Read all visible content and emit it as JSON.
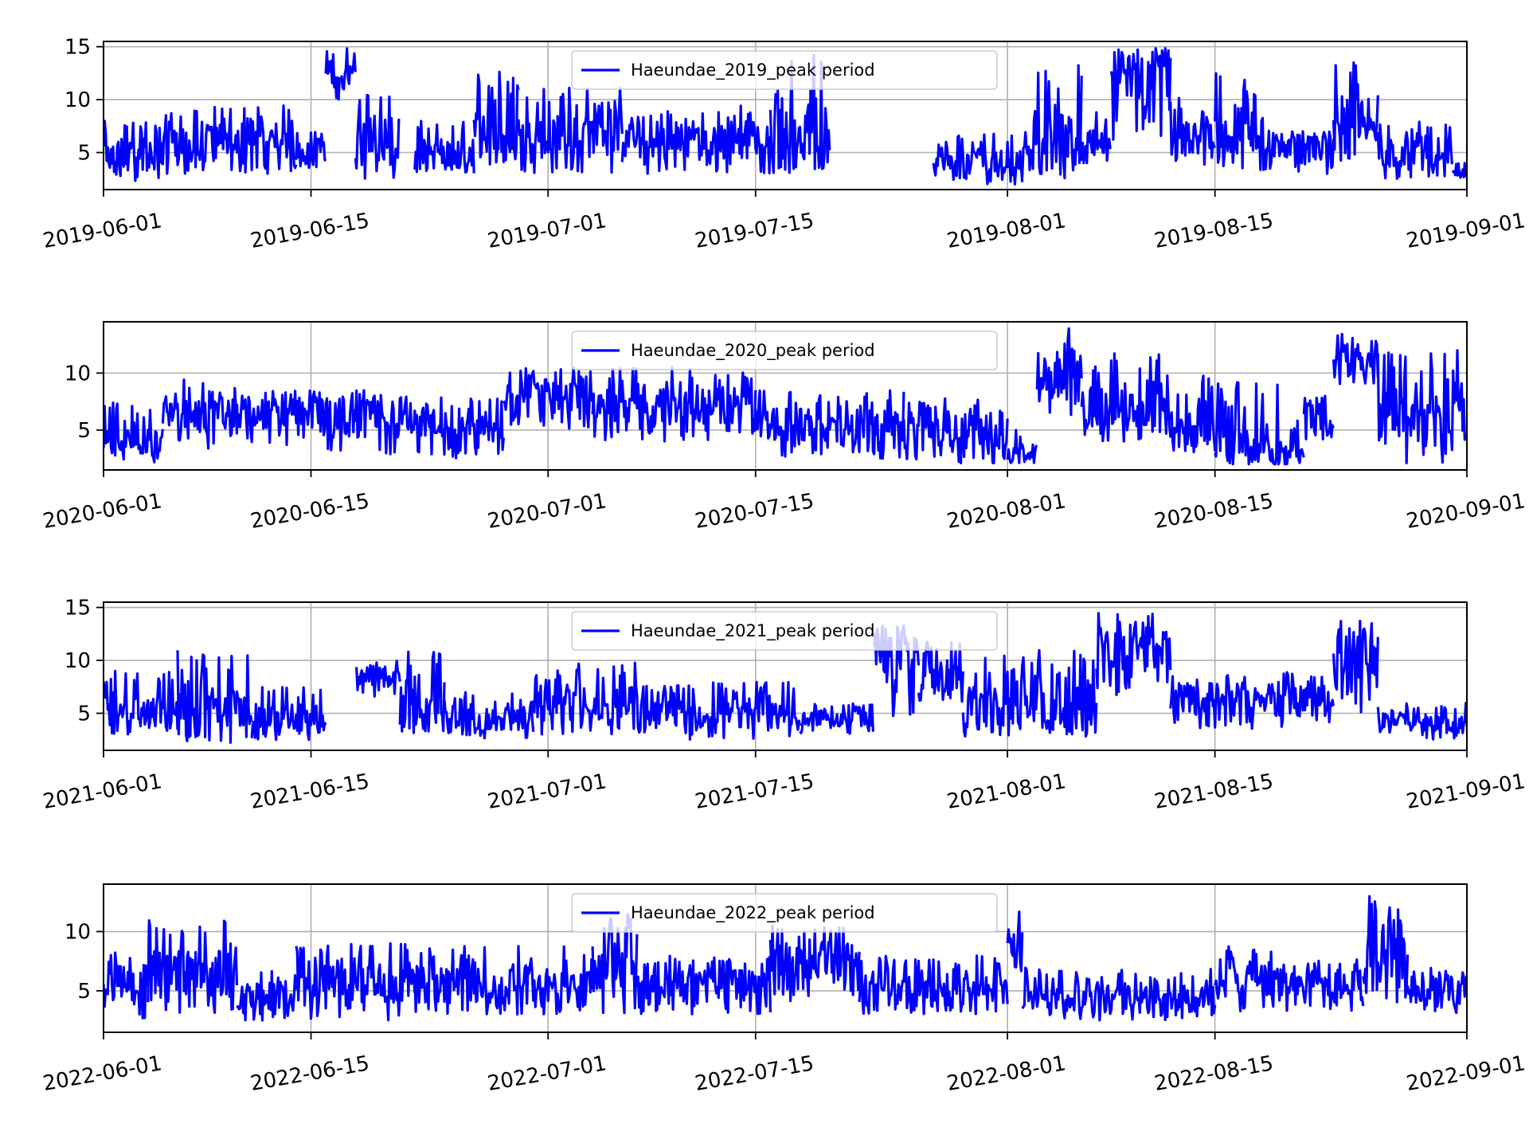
{
  "chart_data": [
    {
      "type": "line",
      "series": [
        {
          "name": "Haeundae_2019_peak period",
          "color": "#0000ff"
        }
      ],
      "x_ticks": [
        "2019-06-01",
        "2019-06-15",
        "2019-07-01",
        "2019-07-15",
        "2019-08-01",
        "2019-08-15",
        "2019-09-01"
      ],
      "y_ticks": [
        "5",
        "10",
        "15"
      ],
      "xlim": [
        "2019-06-01",
        "2019-09-01"
      ],
      "ylim": [
        1.5,
        15.5
      ],
      "grid": true,
      "legend_position": "top-center",
      "segments": [
        {
          "from": "2019-06-01",
          "to": "2019-06-05",
          "min": 2,
          "max": 8,
          "mid": 4.5
        },
        {
          "from": "2019-06-05",
          "to": "2019-06-08",
          "min": 3,
          "max": 9,
          "mid": 5.5
        },
        {
          "from": "2019-06-08",
          "to": "2019-06-14",
          "min": 3,
          "max": 9.5,
          "mid": 6
        },
        {
          "from": "2019-06-14",
          "to": "2019-06-16",
          "min": 3.5,
          "max": 7,
          "mid": 5
        },
        {
          "from": "2019-06-16",
          "to": "2019-06-18",
          "min": 10,
          "max": 15,
          "mid": 12.5
        },
        {
          "from": "2019-06-18",
          "to": "2019-06-21",
          "min": 2,
          "max": 11,
          "mid": 6
        },
        {
          "from": "2019-06-22",
          "to": "2019-06-26",
          "min": 3,
          "max": 8,
          "mid": 4.5
        },
        {
          "from": "2019-06-26",
          "to": "2019-06-29",
          "min": 3,
          "max": 13,
          "mid": 7
        },
        {
          "from": "2019-06-29",
          "to": "2019-07-06",
          "min": 3,
          "max": 11.5,
          "mid": 6.5
        },
        {
          "from": "2019-07-06",
          "to": "2019-07-12",
          "min": 3,
          "max": 9,
          "mid": 6
        },
        {
          "from": "2019-07-12",
          "to": "2019-07-16",
          "min": 3,
          "max": 9.5,
          "mid": 6.5
        },
        {
          "from": "2019-07-16",
          "to": "2019-07-20",
          "min": 3,
          "max": 14.5,
          "mid": 6
        },
        {
          "from": "2019-07-27",
          "to": "2019-08-02",
          "min": 2,
          "max": 7,
          "mid": 4
        },
        {
          "from": "2019-08-02",
          "to": "2019-08-06",
          "min": 2.5,
          "max": 13.5,
          "mid": 6
        },
        {
          "from": "2019-08-06",
          "to": "2019-08-08",
          "min": 4,
          "max": 9,
          "mid": 6
        },
        {
          "from": "2019-08-08",
          "to": "2019-08-12",
          "min": 6,
          "max": 15,
          "mid": 12.5
        },
        {
          "from": "2019-08-12",
          "to": "2019-08-15",
          "min": 3.5,
          "max": 11,
          "mid": 6.5
        },
        {
          "from": "2019-08-15",
          "to": "2019-08-19",
          "min": 3,
          "max": 12.5,
          "mid": 7
        },
        {
          "from": "2019-08-19",
          "to": "2019-08-23",
          "min": 3,
          "max": 7,
          "mid": 5.5
        },
        {
          "from": "2019-08-23",
          "to": "2019-08-26",
          "min": 4,
          "max": 13.5,
          "mid": 8
        },
        {
          "from": "2019-08-26",
          "to": "2019-08-31",
          "min": 2.5,
          "max": 8,
          "mid": 5
        },
        {
          "from": "2019-08-31",
          "to": "2019-09-01",
          "min": 2.5,
          "max": 4,
          "mid": 3
        }
      ]
    },
    {
      "type": "line",
      "series": [
        {
          "name": "Haeundae_2020_peak period",
          "color": "#0000ff"
        }
      ],
      "x_ticks": [
        "2020-06-01",
        "2020-06-15",
        "2020-07-01",
        "2020-07-15",
        "2020-08-01",
        "2020-08-15",
        "2020-09-01"
      ],
      "y_ticks": [
        "5",
        "10"
      ],
      "xlim": [
        "2020-06-01",
        "2020-09-01"
      ],
      "ylim": [
        1.5,
        14.5
      ],
      "grid": true,
      "legend_position": "top-center",
      "segments": [
        {
          "from": "2020-06-01",
          "to": "2020-06-05",
          "min": 2,
          "max": 7.5,
          "mid": 4
        },
        {
          "from": "2020-06-05",
          "to": "2020-06-10",
          "min": 3,
          "max": 9.5,
          "mid": 6
        },
        {
          "from": "2020-06-10",
          "to": "2020-06-20",
          "min": 3,
          "max": 8.5,
          "mid": 6.5
        },
        {
          "from": "2020-06-20",
          "to": "2020-06-28",
          "min": 2.5,
          "max": 8,
          "mid": 5.5
        },
        {
          "from": "2020-06-28",
          "to": "2020-07-04",
          "min": 5,
          "max": 10.5,
          "mid": 8
        },
        {
          "from": "2020-07-04",
          "to": "2020-07-15",
          "min": 4,
          "max": 10.5,
          "mid": 7
        },
        {
          "from": "2020-07-15",
          "to": "2020-07-25",
          "min": 2.5,
          "max": 8.5,
          "mid": 5.5
        },
        {
          "from": "2020-07-25",
          "to": "2020-08-01",
          "min": 2,
          "max": 8,
          "mid": 5
        },
        {
          "from": "2020-08-01",
          "to": "2020-08-03",
          "min": 2,
          "max": 5,
          "mid": 3
        },
        {
          "from": "2020-08-03",
          "to": "2020-08-06",
          "min": 6,
          "max": 14,
          "mid": 10
        },
        {
          "from": "2020-08-06",
          "to": "2020-08-12",
          "min": 4,
          "max": 12,
          "mid": 7
        },
        {
          "from": "2020-08-12",
          "to": "2020-08-15",
          "min": 3,
          "max": 10,
          "mid": 5
        },
        {
          "from": "2020-08-15",
          "to": "2020-08-21",
          "min": 2,
          "max": 9.5,
          "mid": 3.5
        },
        {
          "from": "2020-08-21",
          "to": "2020-08-23",
          "min": 4,
          "max": 8,
          "mid": 5.5
        },
        {
          "from": "2020-08-23",
          "to": "2020-08-26",
          "min": 9,
          "max": 13.5,
          "mid": 11.5
        },
        {
          "from": "2020-08-26",
          "to": "2020-09-01",
          "min": 2,
          "max": 12,
          "mid": 6
        }
      ]
    },
    {
      "type": "line",
      "series": [
        {
          "name": "Haeundae_2021_peak period",
          "color": "#0000ff"
        }
      ],
      "x_ticks": [
        "2021-06-01",
        "2021-06-15",
        "2021-07-01",
        "2021-07-15",
        "2021-08-01",
        "2021-08-15",
        "2021-09-01"
      ],
      "y_ticks": [
        "5",
        "10",
        "15"
      ],
      "xlim": [
        "2021-06-01",
        "2021-09-01"
      ],
      "ylim": [
        1.5,
        15.5
      ],
      "grid": true,
      "legend_position": "top-center",
      "segments": [
        {
          "from": "2021-06-01",
          "to": "2021-06-06",
          "min": 3,
          "max": 9,
          "mid": 5.5
        },
        {
          "from": "2021-06-06",
          "to": "2021-06-11",
          "min": 2,
          "max": 11,
          "mid": 5
        },
        {
          "from": "2021-06-11",
          "to": "2021-06-16",
          "min": 2.5,
          "max": 7.5,
          "mid": 4.5
        },
        {
          "from": "2021-06-18",
          "to": "2021-06-21",
          "min": 6.5,
          "max": 10,
          "mid": 8.5
        },
        {
          "from": "2021-06-21",
          "to": "2021-06-24",
          "min": 3,
          "max": 11,
          "mid": 6
        },
        {
          "from": "2021-06-24",
          "to": "2021-06-30",
          "min": 2.5,
          "max": 7,
          "mid": 4.5
        },
        {
          "from": "2021-06-30",
          "to": "2021-07-10",
          "min": 3,
          "max": 10,
          "mid": 6
        },
        {
          "from": "2021-07-10",
          "to": "2021-07-18",
          "min": 2.5,
          "max": 8,
          "mid": 5
        },
        {
          "from": "2021-07-18",
          "to": "2021-07-23",
          "min": 3,
          "max": 6,
          "mid": 4.5
        },
        {
          "from": "2021-07-23",
          "to": "2021-07-26",
          "min": 4,
          "max": 14,
          "mid": 11
        },
        {
          "from": "2021-07-26",
          "to": "2021-07-29",
          "min": 6,
          "max": 12,
          "mid": 9
        },
        {
          "from": "2021-07-29",
          "to": "2021-08-07",
          "min": 2.5,
          "max": 11,
          "mid": 6
        },
        {
          "from": "2021-08-07",
          "to": "2021-08-12",
          "min": 6,
          "max": 15,
          "mid": 11
        },
        {
          "from": "2021-08-12",
          "to": "2021-08-23",
          "min": 3.5,
          "max": 9,
          "mid": 6.5
        },
        {
          "from": "2021-08-23",
          "to": "2021-08-26",
          "min": 5,
          "max": 14,
          "mid": 9
        },
        {
          "from": "2021-08-26",
          "to": "2021-09-01",
          "min": 2.5,
          "max": 6,
          "mid": 4
        }
      ]
    },
    {
      "type": "line",
      "series": [
        {
          "name": "Haeundae_2022_peak period",
          "color": "#0000ff"
        }
      ],
      "x_ticks": [
        "2022-06-01",
        "2022-06-15",
        "2022-07-01",
        "2022-07-15",
        "2022-08-01",
        "2022-08-15",
        "2022-09-01"
      ],
      "y_ticks": [
        "5",
        "10"
      ],
      "xlim": [
        "2022-06-01",
        "2022-09-01"
      ],
      "ylim": [
        1.5,
        14
      ],
      "grid": true,
      "legend_position": "top-center",
      "segments": [
        {
          "from": "2022-06-01",
          "to": "2022-06-04",
          "min": 2.5,
          "max": 9,
          "mid": 5.5
        },
        {
          "from": "2022-06-04",
          "to": "2022-06-10",
          "min": 3,
          "max": 11,
          "mid": 6.5
        },
        {
          "from": "2022-06-10",
          "to": "2022-06-14",
          "min": 2.5,
          "max": 7,
          "mid": 4.5
        },
        {
          "from": "2022-06-14",
          "to": "2022-06-22",
          "min": 2.5,
          "max": 9,
          "mid": 5.5
        },
        {
          "from": "2022-06-22",
          "to": "2022-07-04",
          "min": 3,
          "max": 9,
          "mid": 5.5
        },
        {
          "from": "2022-07-04",
          "to": "2022-07-07",
          "min": 3,
          "max": 11.5,
          "mid": 8
        },
        {
          "from": "2022-07-07",
          "to": "2022-07-16",
          "min": 3,
          "max": 8,
          "mid": 5.5
        },
        {
          "from": "2022-07-16",
          "to": "2022-07-22",
          "min": 4,
          "max": 10.5,
          "mid": 7.5
        },
        {
          "from": "2022-07-22",
          "to": "2022-08-01",
          "min": 3,
          "max": 8,
          "mid": 5
        },
        {
          "from": "2022-08-01",
          "to": "2022-08-02",
          "min": 6,
          "max": 13,
          "mid": 8
        },
        {
          "from": "2022-08-02",
          "to": "2022-08-15",
          "min": 2.5,
          "max": 7,
          "mid": 4.5
        },
        {
          "from": "2022-08-15",
          "to": "2022-08-19",
          "min": 3,
          "max": 9,
          "mid": 6
        },
        {
          "from": "2022-08-19",
          "to": "2022-08-25",
          "min": 3,
          "max": 8,
          "mid": 5.5
        },
        {
          "from": "2022-08-25",
          "to": "2022-08-28",
          "min": 4,
          "max": 13,
          "mid": 9
        },
        {
          "from": "2022-08-28",
          "to": "2022-09-01",
          "min": 3,
          "max": 7,
          "mid": 5
        }
      ]
    }
  ]
}
